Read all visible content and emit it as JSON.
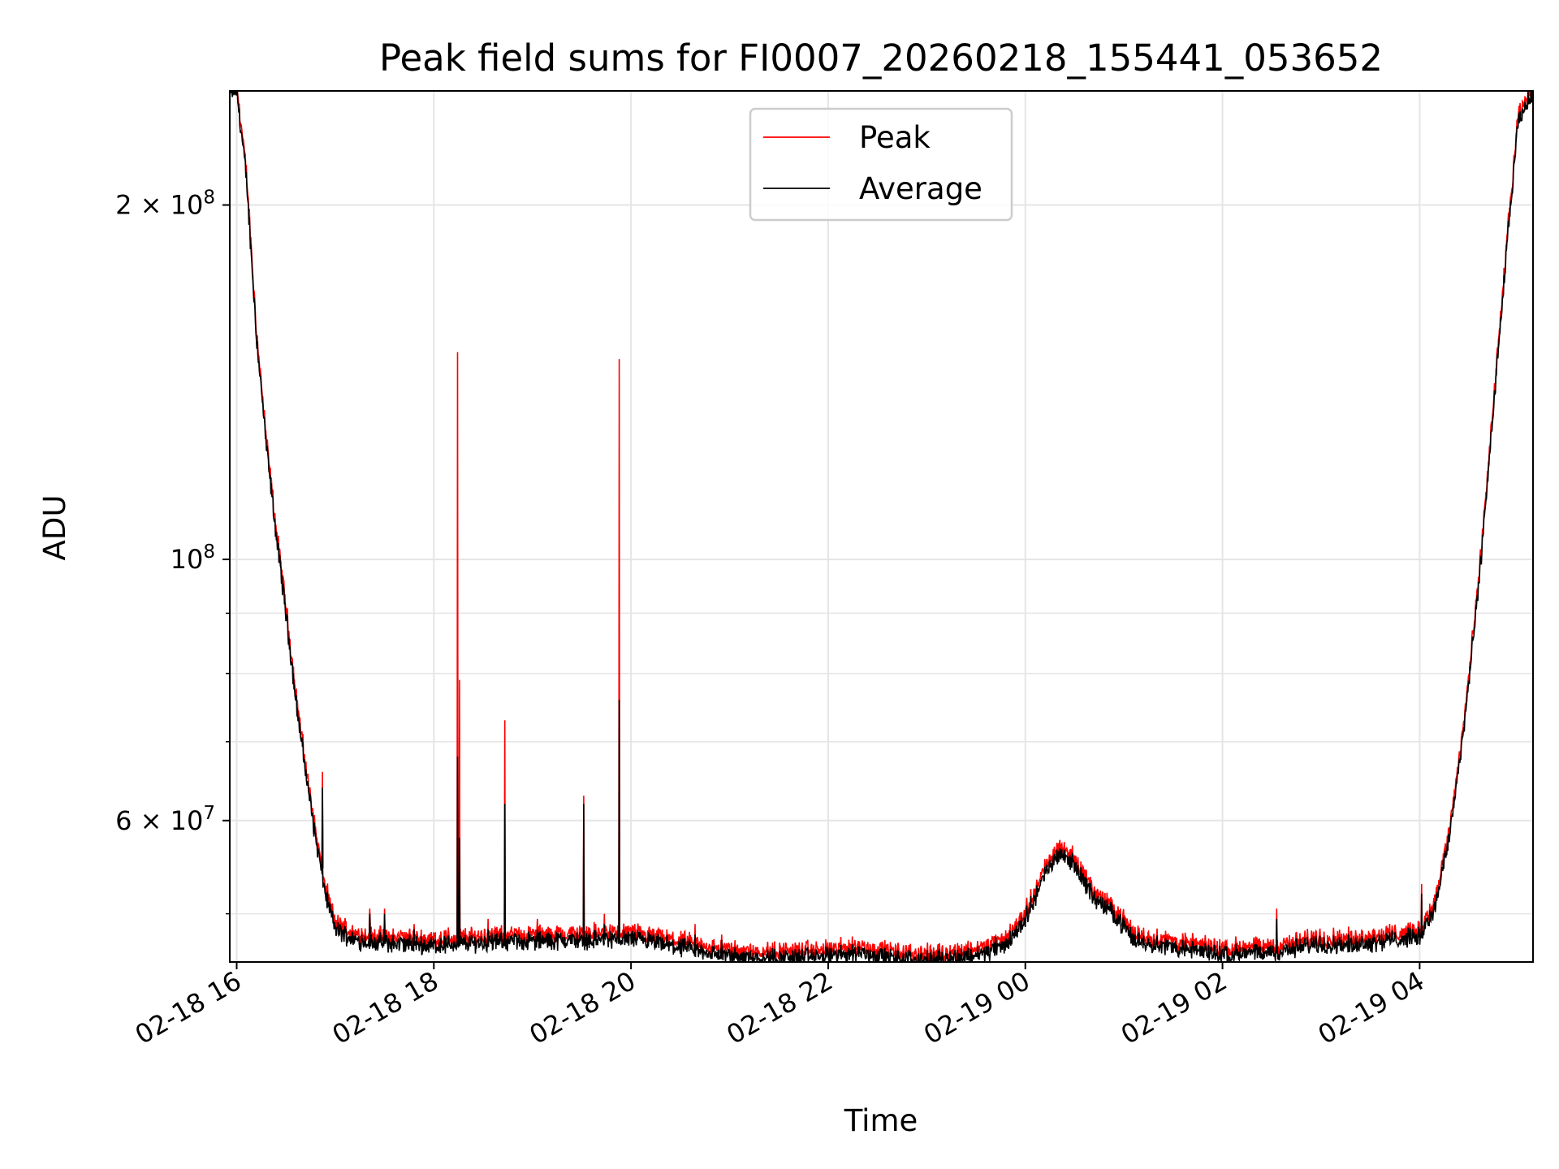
{
  "chart_data": {
    "type": "line",
    "title": "Peak field sums for FI0007_20260218_155441_053652",
    "xlabel": "Time",
    "ylabel": "ADU",
    "yscale": "log",
    "ylim": [
      45500000,
      250000000
    ],
    "xlim_hours": [
      15.93,
      29.15
    ],
    "grid": true,
    "legend_position": "upper center",
    "colors": {
      "peak": "#ff0000",
      "average": "#000000",
      "grid": "#e5e5e5"
    },
    "x_ticks": [
      {
        "hour": 16,
        "label": "02-18 16"
      },
      {
        "hour": 18,
        "label": "02-18 18"
      },
      {
        "hour": 20,
        "label": "02-18 20"
      },
      {
        "hour": 22,
        "label": "02-18 22"
      },
      {
        "hour": 24,
        "label": "02-19 00"
      },
      {
        "hour": 26,
        "label": "02-19 02"
      },
      {
        "hour": 28,
        "label": "02-19 04"
      }
    ],
    "y_major_ticks": [
      {
        "value": 60000000,
        "base": "6 × 10",
        "exp": "7"
      },
      {
        "value": 100000000,
        "base": "10",
        "exp": "8"
      },
      {
        "value": 200000000,
        "base": "2 × 10",
        "exp": "8"
      }
    ],
    "y_minor_ticks": [
      50000000,
      70000000,
      80000000,
      90000000
    ],
    "series": [
      {
        "name": "Average",
        "x_hours": [
          15.93,
          16.0,
          16.1,
          16.2,
          16.3,
          16.4,
          16.5,
          16.6,
          16.7,
          16.8,
          16.9,
          17.0,
          17.2,
          17.5,
          18.0,
          18.5,
          19.0,
          19.5,
          20.0,
          20.5,
          21.0,
          21.5,
          22.0,
          22.3,
          22.6,
          23.0,
          23.3,
          23.6,
          23.8,
          24.0,
          24.2,
          24.35,
          24.5,
          24.7,
          24.9,
          25.1,
          25.5,
          26.0,
          26.5,
          27.0,
          27.2,
          27.5,
          28.0,
          28.15,
          28.3,
          28.45,
          28.6,
          28.75,
          28.9,
          29.0,
          29.15
        ],
        "values": [
          250000000,
          250000000,
          210000000,
          155000000,
          125000000,
          105000000,
          90000000,
          76000000,
          66000000,
          58000000,
          52000000,
          48500000,
          47500000,
          47200000,
          47000000,
          47300000,
          47400000,
          47500000,
          47600000,
          46800000,
          46000000,
          45900000,
          46000000,
          46400000,
          45900000,
          45600000,
          45900000,
          46300000,
          47000000,
          49500000,
          54000000,
          56500000,
          55000000,
          51500000,
          50000000,
          47500000,
          46800000,
          46200000,
          46300000,
          47200000,
          47000000,
          47300000,
          47800000,
          50500000,
          58000000,
          72000000,
          95000000,
          135000000,
          190000000,
          235000000,
          250000000
        ]
      },
      {
        "name": "Peak",
        "offset": 0.004,
        "spikes": [
          {
            "hour": 16.87,
            "peak": 66000000,
            "avg": 64000000
          },
          {
            "hour": 17.35,
            "peak": 50500000,
            "avg": 50000000
          },
          {
            "hour": 17.5,
            "peak": 50500000,
            "avg": 50000000
          },
          {
            "hour": 17.8,
            "peak": 49000000,
            "avg": 48500000
          },
          {
            "hour": 18.24,
            "peak": 150000000,
            "avg": 68000000
          },
          {
            "hour": 18.26,
            "peak": 79000000,
            "avg": 58000000
          },
          {
            "hour": 18.55,
            "peak": 49500000,
            "avg": 48500000
          },
          {
            "hour": 18.72,
            "peak": 73000000,
            "avg": 62000000
          },
          {
            "hour": 19.05,
            "peak": 49500000,
            "avg": 48500000
          },
          {
            "hour": 19.52,
            "peak": 63000000,
            "avg": 62000000
          },
          {
            "hour": 19.73,
            "peak": 50000000,
            "avg": 49000000
          },
          {
            "hour": 19.88,
            "peak": 148000000,
            "avg": 76000000
          },
          {
            "hour": 20.65,
            "peak": 49000000,
            "avg": 48000000
          },
          {
            "hour": 20.92,
            "peak": 48000000,
            "avg": 47500000
          },
          {
            "hour": 23.7,
            "peak": 48000000,
            "avg": 47800000
          },
          {
            "hour": 26.55,
            "peak": 50500000,
            "avg": 49500000
          },
          {
            "hour": 28.02,
            "peak": 53000000,
            "avg": 52000000
          }
        ]
      }
    ]
  }
}
